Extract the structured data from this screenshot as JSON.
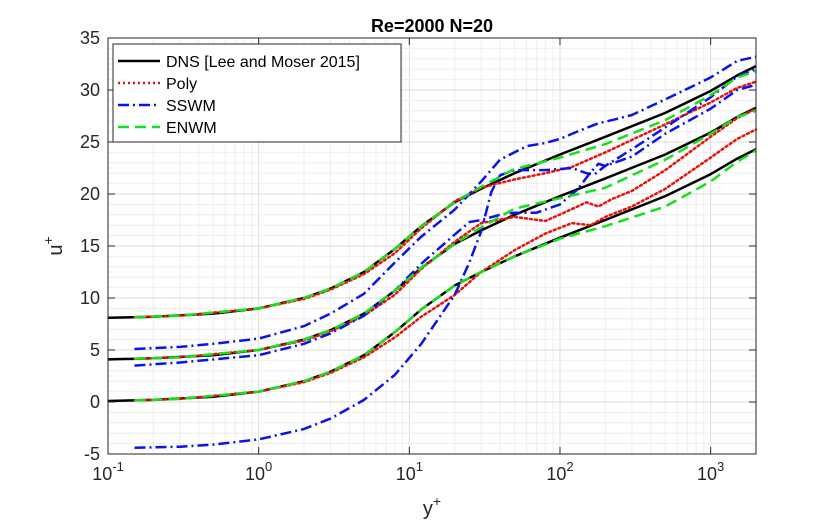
{
  "chart_data": {
    "type": "line",
    "title": "Re=2000 N=20",
    "xlabel": "y",
    "xlabel_sup": "+",
    "ylabel": "u",
    "ylabel_sup": "+",
    "xscale": "log",
    "xlim": [
      0.1,
      2000
    ],
    "ylim": [
      -5,
      35
    ],
    "grid": "on (major and minor)",
    "legend_position": "top-left",
    "x_tick_labels": [
      {
        "base": "10",
        "exp": "-1",
        "value": 0.1
      },
      {
        "base": "10",
        "exp": "0",
        "value": 1
      },
      {
        "base": "10",
        "exp": "1",
        "value": 10
      },
      {
        "base": "10",
        "exp": "2",
        "value": 100
      },
      {
        "base": "10",
        "exp": "3",
        "value": 1000
      }
    ],
    "y_ticks": [
      -5,
      0,
      5,
      10,
      15,
      20,
      25,
      30,
      35
    ],
    "series": [
      {
        "name": "DNS [Lee and Moser 2015]",
        "color": "#000000",
        "style": "solid",
        "profiles": [
          {
            "offset": 0,
            "points": [
              [
                0.1,
                0.1
              ],
              [
                0.2,
                0.2
              ],
              [
                0.5,
                0.5
              ],
              [
                1,
                1
              ],
              [
                2,
                2
              ],
              [
                3,
                2.9
              ],
              [
                5,
                4.5
              ],
              [
                8,
                6.7
              ],
              [
                12,
                8.9
              ],
              [
                20,
                11.2
              ],
              [
                30,
                12.5
              ],
              [
                50,
                14
              ],
              [
                100,
                15.8
              ],
              [
                200,
                17.5
              ],
              [
                500,
                19.8
              ],
              [
                1000,
                21.9
              ],
              [
                1500,
                23.4
              ],
              [
                2000,
                24.3
              ]
            ]
          },
          {
            "offset": 4,
            "points": [
              [
                0.1,
                4.1
              ],
              [
                0.2,
                4.2
              ],
              [
                0.5,
                4.5
              ],
              [
                1,
                5
              ],
              [
                2,
                6
              ],
              [
                3,
                6.9
              ],
              [
                5,
                8.5
              ],
              [
                8,
                10.7
              ],
              [
                12,
                12.9
              ],
              [
                20,
                15.2
              ],
              [
                30,
                16.5
              ],
              [
                50,
                18
              ],
              [
                100,
                19.8
              ],
              [
                200,
                21.5
              ],
              [
                500,
                23.8
              ],
              [
                1000,
                25.9
              ],
              [
                1500,
                27.4
              ],
              [
                2000,
                28.3
              ]
            ]
          },
          {
            "offset": 8,
            "points": [
              [
                0.1,
                8.1
              ],
              [
                0.2,
                8.2
              ],
              [
                0.5,
                8.5
              ],
              [
                1,
                9
              ],
              [
                2,
                10
              ],
              [
                3,
                10.9
              ],
              [
                5,
                12.5
              ],
              [
                8,
                14.7
              ],
              [
                12,
                16.9
              ],
              [
                20,
                19.2
              ],
              [
                30,
                20.5
              ],
              [
                50,
                22
              ],
              [
                100,
                23.8
              ],
              [
                200,
                25.5
              ],
              [
                500,
                27.8
              ],
              [
                1000,
                29.9
              ],
              [
                1500,
                31.4
              ],
              [
                2000,
                32.3
              ]
            ]
          }
        ]
      },
      {
        "name": "Poly",
        "color": "#e8140c",
        "style": "dotted",
        "profiles": [
          {
            "offset": 0,
            "points": [
              [
                0.15,
                0.15
              ],
              [
                0.3,
                0.3
              ],
              [
                1,
                1
              ],
              [
                2,
                1.9
              ],
              [
                3,
                2.8
              ],
              [
                5,
                4.3
              ],
              [
                8,
                6.2
              ],
              [
                12,
                8.2
              ],
              [
                20,
                10.3
              ],
              [
                30,
                12.5
              ],
              [
                50,
                14.6
              ],
              [
                80,
                16.2
              ],
              [
                120,
                17.2
              ],
              [
                160,
                17
              ],
              [
                200,
                17.8
              ],
              [
                300,
                18.8
              ],
              [
                500,
                20.5
              ],
              [
                1000,
                23.5
              ],
              [
                1500,
                25.3
              ],
              [
                2000,
                26.2
              ]
            ]
          },
          {
            "offset": 4,
            "points": [
              [
                0.15,
                4.15
              ],
              [
                0.3,
                4.3
              ],
              [
                1,
                5
              ],
              [
                2,
                5.9
              ],
              [
                3,
                6.8
              ],
              [
                5,
                8.3
              ],
              [
                8,
                10.3
              ],
              [
                12,
                12.8
              ],
              [
                20,
                15.4
              ],
              [
                30,
                17.2
              ],
              [
                50,
                17.8
              ],
              [
                80,
                17.4
              ],
              [
                110,
                18.3
              ],
              [
                150,
                19.2
              ],
              [
                180,
                18.8
              ],
              [
                220,
                19.5
              ],
              [
                300,
                20.3
              ],
              [
                500,
                22.3
              ],
              [
                1000,
                25.5
              ],
              [
                1500,
                27.3
              ],
              [
                2000,
                28.2
              ]
            ]
          },
          {
            "offset": 8,
            "points": [
              [
                0.15,
                8.15
              ],
              [
                0.3,
                8.3
              ],
              [
                1,
                9
              ],
              [
                2,
                9.9
              ],
              [
                3,
                10.8
              ],
              [
                5,
                12.3
              ],
              [
                8,
                14.3
              ],
              [
                12,
                16.7
              ],
              [
                20,
                19.3
              ],
              [
                30,
                20.6
              ],
              [
                50,
                21.4
              ],
              [
                80,
                22
              ],
              [
                120,
                22.6
              ],
              [
                200,
                24
              ],
              [
                500,
                26.7
              ],
              [
                1000,
                28.8
              ],
              [
                1500,
                30.2
              ],
              [
                2000,
                30.8
              ]
            ]
          }
        ]
      },
      {
        "name": "SSWM",
        "color": "#0a14e6",
        "style": "dashdot",
        "profiles": [
          {
            "offset": 0,
            "points": [
              [
                0.15,
                -4.4
              ],
              [
                0.3,
                -4.3
              ],
              [
                0.5,
                -4.1
              ],
              [
                1,
                -3.6
              ],
              [
                2,
                -2.6
              ],
              [
                3,
                -1.6
              ],
              [
                5,
                0.2
              ],
              [
                8,
                2.6
              ],
              [
                12,
                5.6
              ],
              [
                20,
                10.3
              ],
              [
                25,
                13.4
              ],
              [
                30,
                16.4
              ],
              [
                35,
                20.2
              ],
              [
                40,
                21.8
              ],
              [
                50,
                22.3
              ],
              [
                80,
                22.3
              ],
              [
                120,
                22.5
              ],
              [
                150,
                22
              ],
              [
                170,
                21.9
              ],
              [
                200,
                22.7
              ],
              [
                300,
                24.3
              ],
              [
                500,
                26.4
              ],
              [
                1000,
                29.3
              ],
              [
                1500,
                31.3
              ],
              [
                2000,
                32
              ]
            ]
          },
          {
            "offset": 4,
            "points": [
              [
                0.15,
                3.5
              ],
              [
                0.3,
                3.8
              ],
              [
                0.5,
                4.1
              ],
              [
                1,
                4.5
              ],
              [
                2,
                5.6
              ],
              [
                3,
                6.6
              ],
              [
                5,
                8.3
              ],
              [
                8,
                10.7
              ],
              [
                12,
                13.3
              ],
              [
                20,
                16.1
              ],
              [
                25,
                17.3
              ],
              [
                30,
                17.5
              ],
              [
                40,
                18
              ],
              [
                50,
                18.2
              ],
              [
                70,
                18.2
              ],
              [
                100,
                19
              ],
              [
                130,
                20.4
              ],
              [
                160,
                22.1
              ],
              [
                180,
                22.9
              ],
              [
                200,
                22.7
              ],
              [
                300,
                23.6
              ],
              [
                500,
                25.8
              ],
              [
                1000,
                28.2
              ],
              [
                1500,
                30
              ],
              [
                2000,
                30.5
              ]
            ]
          },
          {
            "offset": 8,
            "points": [
              [
                0.15,
                5.1
              ],
              [
                0.3,
                5.3
              ],
              [
                0.5,
                5.6
              ],
              [
                1,
                6.1
              ],
              [
                2,
                7.3
              ],
              [
                3,
                8.5
              ],
              [
                5,
                10.4
              ],
              [
                8,
                13.4
              ],
              [
                12,
                15.9
              ],
              [
                20,
                18.5
              ],
              [
                30,
                21.2
              ],
              [
                40,
                23.3
              ],
              [
                60,
                24.6
              ],
              [
                80,
                24.9
              ],
              [
                100,
                25.3
              ],
              [
                130,
                26
              ],
              [
                180,
                26.8
              ],
              [
                220,
                27.1
              ],
              [
                300,
                27.6
              ],
              [
                500,
                29.1
              ],
              [
                1000,
                31.2
              ],
              [
                1500,
                32.8
              ],
              [
                2000,
                33.2
              ]
            ]
          }
        ]
      },
      {
        "name": "ENWM",
        "color": "#16e01a",
        "style": "dashed",
        "profiles": [
          {
            "offset": 0,
            "points": [
              [
                0.15,
                0.15
              ],
              [
                0.3,
                0.3
              ],
              [
                1,
                1
              ],
              [
                2,
                2
              ],
              [
                3,
                2.9
              ],
              [
                5,
                4.5
              ],
              [
                8,
                6.7
              ],
              [
                12,
                8.9
              ],
              [
                20,
                11.2
              ],
              [
                30,
                12.5
              ],
              [
                50,
                14
              ],
              [
                100,
                15.7
              ],
              [
                200,
                16.9
              ],
              [
                500,
                18.8
              ],
              [
                1000,
                21.2
              ],
              [
                1500,
                23.1
              ],
              [
                2000,
                24.2
              ]
            ]
          },
          {
            "offset": 4,
            "points": [
              [
                0.15,
                4.15
              ],
              [
                0.3,
                4.3
              ],
              [
                1,
                5
              ],
              [
                2,
                6
              ],
              [
                3,
                6.9
              ],
              [
                5,
                8.5
              ],
              [
                8,
                10.7
              ],
              [
                12,
                12.9
              ],
              [
                20,
                15.2
              ],
              [
                30,
                16.8
              ],
              [
                50,
                18.6
              ],
              [
                100,
                19.6
              ],
              [
                200,
                20.6
              ],
              [
                500,
                23.3
              ],
              [
                1000,
                25.8
              ],
              [
                1500,
                27.4
              ],
              [
                2000,
                28
              ]
            ]
          },
          {
            "offset": 8,
            "points": [
              [
                0.15,
                8.15
              ],
              [
                0.3,
                8.3
              ],
              [
                1,
                9
              ],
              [
                2,
                10
              ],
              [
                3,
                10.9
              ],
              [
                5,
                12.5
              ],
              [
                8,
                14.7
              ],
              [
                12,
                16.9
              ],
              [
                20,
                19.2
              ],
              [
                30,
                20.7
              ],
              [
                50,
                22.4
              ],
              [
                100,
                23.5
              ],
              [
                200,
                24.8
              ],
              [
                500,
                27.1
              ],
              [
                1000,
                29.5
              ],
              [
                1500,
                31.2
              ],
              [
                2000,
                31.8
              ]
            ]
          }
        ]
      }
    ]
  }
}
